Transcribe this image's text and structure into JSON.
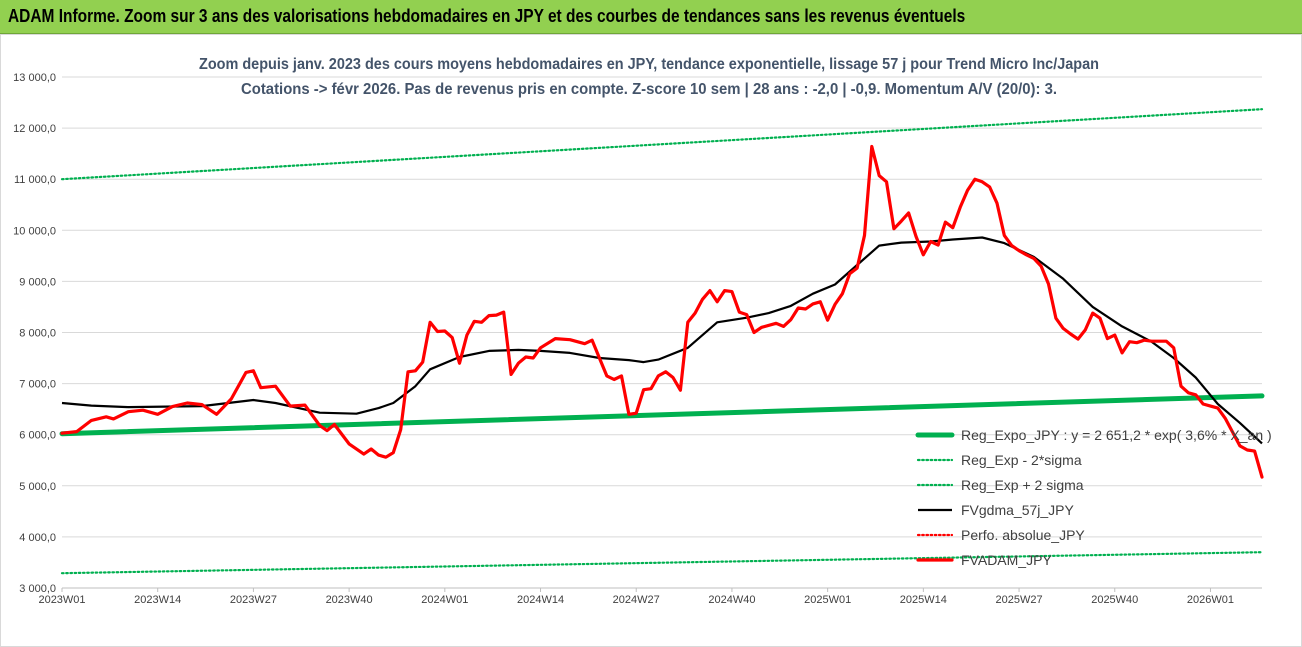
{
  "banner": {
    "title": "ADAM Informe. Zoom sur 3 ans des valorisations hebdomadaires en JPY et des courbes de tendances sans les revenus éventuels"
  },
  "chart_data": {
    "type": "line",
    "title": [
      "Zoom depuis janv. 2023 des cours moyens hebdomadaires en JPY, tendance exponentielle, lissage 57 j pour Trend Micro Inc/Japan",
      "Cotations -> févr 2026.  Pas de revenus pris en compte. Z-score 10 sem | 28 ans : -2,0 | -0,9. Momentum A/V (20/0): 3."
    ],
    "ylim": [
      3000,
      13000
    ],
    "yticks": [
      "3 000,0",
      "4 000,0",
      "5 000,0",
      "6 000,0",
      "7 000,0",
      "8 000,0",
      "9 000,0",
      "10 000,0",
      "11 000,0",
      "12 000,0",
      "13 000,0"
    ],
    "ytick_values": [
      3000,
      4000,
      5000,
      6000,
      7000,
      8000,
      9000,
      10000,
      11000,
      12000,
      13000
    ],
    "xlim": [
      1,
      164
    ],
    "xticks": [
      "2023W01",
      "2023W14",
      "2023W27",
      "2023W40",
      "2024W01",
      "2024W14",
      "2024W27",
      "2024W40",
      "2025W01",
      "2025W14",
      "2025W27",
      "2025W40",
      "2026W01"
    ],
    "xtick_values": [
      1,
      14,
      27,
      40,
      53,
      66,
      79,
      92,
      105,
      118,
      131,
      144,
      157
    ],
    "grid": true,
    "legend_position": "bottom-right",
    "colors": {
      "reg_expo": "#00b050",
      "fvgdma": "#000000",
      "perfo": "#ff0000",
      "fvadam": "#ff0000",
      "grid": "#d9d9d9",
      "title": "#44546a"
    },
    "series": [
      {
        "name": "Reg_Expo_JPY : y = 2 651,2 * exp( 3,6% *  X_an )",
        "style": "solid-thick",
        "color": "#00b050",
        "points": [
          [
            1,
            6020
          ],
          [
            164,
            6760
          ]
        ]
      },
      {
        "name": "Reg_Exp - 2*sigma",
        "style": "dotted",
        "color": "#00b050",
        "points": [
          [
            1,
            3290
          ],
          [
            164,
            3700
          ]
        ]
      },
      {
        "name": "Reg_Exp + 2 sigma",
        "style": "dotted",
        "color": "#00b050",
        "points": [
          [
            1,
            11000
          ],
          [
            164,
            12370
          ]
        ]
      },
      {
        "name": "FVgdma_57j_JPY",
        "style": "solid",
        "color": "#000000",
        "points": [
          [
            1,
            6620
          ],
          [
            5,
            6570
          ],
          [
            10,
            6540
          ],
          [
            20,
            6560
          ],
          [
            27,
            6680
          ],
          [
            30,
            6620
          ],
          [
            36,
            6430
          ],
          [
            41,
            6410
          ],
          [
            44,
            6520
          ],
          [
            46,
            6620
          ],
          [
            49,
            6950
          ],
          [
            51,
            7280
          ],
          [
            55,
            7520
          ],
          [
            59,
            7640
          ],
          [
            63,
            7660
          ],
          [
            66,
            7640
          ],
          [
            70,
            7600
          ],
          [
            74,
            7500
          ],
          [
            78,
            7460
          ],
          [
            80,
            7420
          ],
          [
            82,
            7470
          ],
          [
            86,
            7700
          ],
          [
            90,
            8200
          ],
          [
            94,
            8290
          ],
          [
            97,
            8380
          ],
          [
            100,
            8520
          ],
          [
            103,
            8760
          ],
          [
            106,
            8940
          ],
          [
            109,
            9320
          ],
          [
            112,
            9700
          ],
          [
            115,
            9760
          ],
          [
            119,
            9780
          ],
          [
            122,
            9820
          ],
          [
            126,
            9860
          ],
          [
            129,
            9750
          ],
          [
            133,
            9480
          ],
          [
            137,
            9050
          ],
          [
            141,
            8500
          ],
          [
            145,
            8120
          ],
          [
            149,
            7820
          ],
          [
            152,
            7500
          ],
          [
            155,
            7120
          ],
          [
            158,
            6600
          ],
          [
            161,
            6230
          ],
          [
            164,
            5830
          ]
        ]
      },
      {
        "name": "Perfo. absolue_JPY",
        "style": "dotted",
        "color": "#ff0000",
        "points": []
      },
      {
        "name": "FVADAM_JPY",
        "style": "solid-thick",
        "color": "#ff0000",
        "points": [
          [
            1,
            6030
          ],
          [
            3,
            6060
          ],
          [
            5,
            6280
          ],
          [
            7,
            6350
          ],
          [
            8,
            6310
          ],
          [
            10,
            6450
          ],
          [
            12,
            6480
          ],
          [
            14,
            6400
          ],
          [
            16,
            6550
          ],
          [
            18,
            6620
          ],
          [
            20,
            6590
          ],
          [
            22,
            6400
          ],
          [
            24,
            6700
          ],
          [
            26,
            7220
          ],
          [
            27,
            7250
          ],
          [
            28,
            6920
          ],
          [
            30,
            6950
          ],
          [
            32,
            6560
          ],
          [
            34,
            6580
          ],
          [
            36,
            6180
          ],
          [
            37,
            6080
          ],
          [
            38,
            6200
          ],
          [
            40,
            5820
          ],
          [
            42,
            5620
          ],
          [
            43,
            5720
          ],
          [
            44,
            5600
          ],
          [
            45,
            5560
          ],
          [
            46,
            5650
          ],
          [
            47,
            6100
          ],
          [
            48,
            7230
          ],
          [
            49,
            7250
          ],
          [
            50,
            7420
          ],
          [
            51,
            8200
          ],
          [
            52,
            8020
          ],
          [
            53,
            8030
          ],
          [
            54,
            7900
          ],
          [
            55,
            7400
          ],
          [
            56,
            7950
          ],
          [
            57,
            8220
          ],
          [
            58,
            8200
          ],
          [
            59,
            8330
          ],
          [
            60,
            8340
          ],
          [
            61,
            8400
          ],
          [
            62,
            7180
          ],
          [
            63,
            7400
          ],
          [
            64,
            7520
          ],
          [
            65,
            7500
          ],
          [
            66,
            7700
          ],
          [
            68,
            7880
          ],
          [
            70,
            7860
          ],
          [
            72,
            7780
          ],
          [
            73,
            7850
          ],
          [
            74,
            7500
          ],
          [
            75,
            7150
          ],
          [
            76,
            7080
          ],
          [
            77,
            7150
          ],
          [
            78,
            6400
          ],
          [
            79,
            6420
          ],
          [
            80,
            6880
          ],
          [
            81,
            6900
          ],
          [
            82,
            7150
          ],
          [
            83,
            7230
          ],
          [
            84,
            7120
          ],
          [
            85,
            6870
          ],
          [
            86,
            8200
          ],
          [
            87,
            8380
          ],
          [
            88,
            8650
          ],
          [
            89,
            8820
          ],
          [
            90,
            8600
          ],
          [
            91,
            8820
          ],
          [
            92,
            8800
          ],
          [
            93,
            8400
          ],
          [
            94,
            8350
          ],
          [
            95,
            8000
          ],
          [
            96,
            8100
          ],
          [
            98,
            8180
          ],
          [
            99,
            8120
          ],
          [
            100,
            8250
          ],
          [
            101,
            8480
          ],
          [
            102,
            8460
          ],
          [
            103,
            8560
          ],
          [
            104,
            8600
          ],
          [
            105,
            8240
          ],
          [
            106,
            8550
          ],
          [
            107,
            8760
          ],
          [
            108,
            9150
          ],
          [
            109,
            9260
          ],
          [
            110,
            9900
          ],
          [
            111,
            11640
          ],
          [
            112,
            11070
          ],
          [
            113,
            10950
          ],
          [
            114,
            10030
          ],
          [
            115,
            10180
          ],
          [
            116,
            10340
          ],
          [
            117,
            9880
          ],
          [
            118,
            9520
          ],
          [
            119,
            9780
          ],
          [
            120,
            9710
          ],
          [
            121,
            10160
          ],
          [
            122,
            10050
          ],
          [
            123,
            10450
          ],
          [
            124,
            10780
          ],
          [
            125,
            11000
          ],
          [
            126,
            10950
          ],
          [
            127,
            10850
          ],
          [
            128,
            10530
          ],
          [
            129,
            9900
          ],
          [
            130,
            9700
          ],
          [
            131,
            9600
          ],
          [
            132,
            9520
          ],
          [
            133,
            9450
          ],
          [
            134,
            9300
          ],
          [
            135,
            8950
          ],
          [
            136,
            8280
          ],
          [
            137,
            8080
          ],
          [
            138,
            7970
          ],
          [
            139,
            7870
          ],
          [
            140,
            8050
          ],
          [
            141,
            8380
          ],
          [
            142,
            8280
          ],
          [
            143,
            7880
          ],
          [
            144,
            7950
          ],
          [
            145,
            7600
          ],
          [
            146,
            7820
          ],
          [
            147,
            7800
          ],
          [
            148,
            7850
          ],
          [
            149,
            7830
          ],
          [
            150,
            7830
          ],
          [
            151,
            7830
          ],
          [
            152,
            7700
          ],
          [
            153,
            6950
          ],
          [
            154,
            6820
          ],
          [
            155,
            6780
          ],
          [
            156,
            6600
          ],
          [
            157,
            6560
          ],
          [
            158,
            6520
          ],
          [
            159,
            6320
          ],
          [
            160,
            6050
          ],
          [
            161,
            5780
          ],
          [
            162,
            5700
          ],
          [
            163,
            5680
          ],
          [
            164,
            5170
          ]
        ]
      }
    ]
  }
}
